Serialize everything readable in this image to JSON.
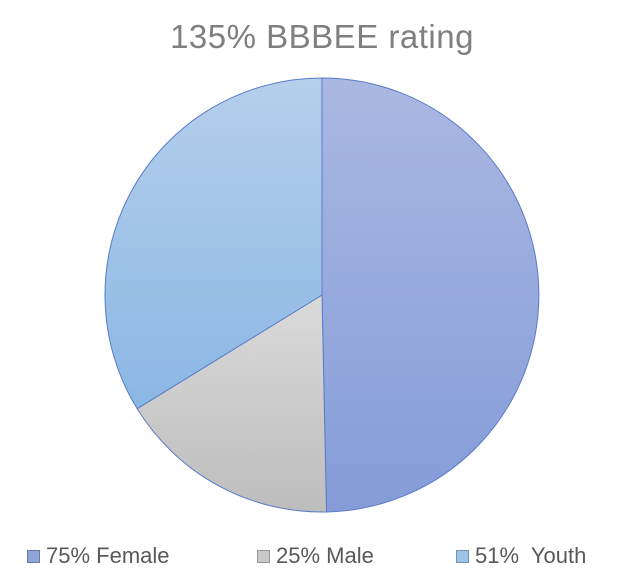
{
  "chart_data": {
    "type": "pie",
    "title": "135% BBBEE rating",
    "slices": [
      {
        "label": "75% Female",
        "value": 75,
        "color": "#8ea3d9"
      },
      {
        "label": "25% Male",
        "value": 25,
        "color": "#c9c9c9"
      },
      {
        "label": "51%  Youth",
        "value": 51,
        "color": "#9ec3e8"
      }
    ],
    "start_angle_deg": 0,
    "direction": "clockwise",
    "legend_position": "bottom"
  }
}
